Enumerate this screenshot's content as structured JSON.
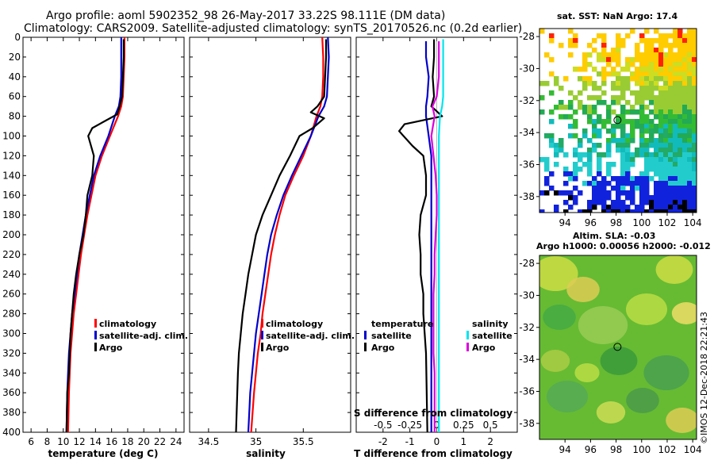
{
  "title": {
    "line1": "Argo profile: aoml 5902352_98 26-May-2017 33.22S 98.111E (DM data)",
    "line2": "Climatology: CARS2009. Satellite-adjusted climatology: synTS_20170526.nc (0.2d earlier)"
  },
  "credit": "©IMOS 12-Dec-2018 22:21:43",
  "colors": {
    "climatology": "#ff0000",
    "satellite": "#0000cc",
    "argo": "#000000",
    "satellite_salinity": "#00e5ee",
    "argo_salinity": "#dd00dd"
  },
  "chart_data": [
    {
      "type": "line",
      "id": "temperature",
      "xlabel": "temperature (deg C)",
      "ylabel": "",
      "xlim": [
        5,
        25
      ],
      "ylim": [
        400,
        0
      ],
      "xticks": [
        "6",
        "8",
        "10",
        "12",
        "14",
        "16",
        "18",
        "20",
        "22",
        "24"
      ],
      "xtick_values": [
        6,
        8,
        10,
        12,
        14,
        16,
        18,
        20,
        22,
        24
      ],
      "yticks": [
        "0",
        "20",
        "40",
        "60",
        "80",
        "100",
        "120",
        "140",
        "160",
        "180",
        "200",
        "220",
        "240",
        "260",
        "280",
        "300",
        "320",
        "340",
        "360",
        "380",
        "400"
      ],
      "ytick_values": [
        0,
        20,
        40,
        60,
        80,
        100,
        120,
        140,
        160,
        180,
        200,
        220,
        240,
        260,
        280,
        300,
        320,
        340,
        360,
        380,
        400
      ],
      "legend": [
        "climatology",
        "satellite-adj. clim.",
        "Argo"
      ],
      "series": [
        {
          "name": "climatology",
          "color": "#ff0000",
          "x": [
            17.6,
            17.6,
            17.5,
            17.4,
            17.2,
            16.8,
            15.8,
            14.8,
            14.0,
            13.5,
            13.0,
            12.6,
            12.2,
            11.9,
            11.6,
            11.3,
            11.1,
            10.9,
            10.8,
            10.7,
            10.6
          ],
          "y": [
            0,
            20,
            40,
            60,
            70,
            80,
            100,
            120,
            140,
            160,
            180,
            200,
            220,
            240,
            260,
            280,
            300,
            320,
            340,
            360,
            400
          ]
        },
        {
          "name": "satellite-adj. clim.",
          "color": "#0000cc",
          "x": [
            17.2,
            17.2,
            17.2,
            17.1,
            16.9,
            16.4,
            15.6,
            14.6,
            13.8,
            13.3,
            12.8,
            12.4,
            12.0,
            11.7,
            11.4,
            11.1,
            10.9,
            10.7,
            10.6,
            10.5,
            10.4
          ],
          "y": [
            0,
            20,
            40,
            60,
            70,
            80,
            100,
            120,
            140,
            160,
            180,
            200,
            220,
            240,
            260,
            280,
            300,
            320,
            340,
            360,
            400
          ]
        },
        {
          "name": "Argo",
          "color": "#000000",
          "x": [
            17.5,
            17.5,
            17.4,
            17.3,
            17.0,
            16.7,
            15.8,
            13.6,
            13.1,
            13.8,
            13.6,
            13.0,
            12.8,
            12.5,
            12.0,
            11.6,
            11.3,
            11.1,
            10.9,
            10.8,
            10.7,
            10.5,
            10.4
          ],
          "y": [
            2,
            20,
            40,
            60,
            70,
            78,
            82,
            92,
            100,
            120,
            140,
            160,
            180,
            200,
            220,
            240,
            260,
            280,
            300,
            320,
            340,
            360,
            400
          ]
        }
      ]
    },
    {
      "type": "line",
      "id": "salinity",
      "xlabel": "salinity",
      "xlim": [
        34.3,
        36.0
      ],
      "ylim": [
        400,
        0
      ],
      "xticks": [
        "34.5",
        "35",
        "35.5"
      ],
      "xtick_values": [
        34.5,
        35.0,
        35.5
      ],
      "legend": [
        "climatology",
        "satellite-adj. clim.",
        "Argo"
      ],
      "series": [
        {
          "name": "climatology",
          "color": "#ff0000",
          "x": [
            35.7,
            35.71,
            35.71,
            35.7,
            35.68,
            35.64,
            35.58,
            35.5,
            35.4,
            35.31,
            35.25,
            35.2,
            35.16,
            35.13,
            35.1,
            35.07,
            35.05,
            35.02,
            35.0,
            34.98,
            34.95
          ],
          "y": [
            0,
            20,
            40,
            60,
            70,
            80,
            100,
            120,
            140,
            160,
            180,
            200,
            220,
            240,
            260,
            280,
            300,
            320,
            340,
            360,
            400
          ]
        },
        {
          "name": "satellite-adj. clim.",
          "color": "#0000cc",
          "x": [
            35.76,
            35.77,
            35.76,
            35.75,
            35.72,
            35.66,
            35.58,
            35.48,
            35.38,
            35.29,
            35.22,
            35.16,
            35.12,
            35.09,
            35.06,
            35.03,
            35.0,
            34.98,
            34.96,
            34.94,
            34.92
          ],
          "y": [
            0,
            20,
            40,
            60,
            70,
            80,
            100,
            120,
            140,
            160,
            180,
            200,
            220,
            240,
            260,
            280,
            300,
            320,
            340,
            360,
            400
          ]
        },
        {
          "name": "Argo",
          "color": "#000000",
          "x": [
            35.74,
            35.74,
            35.73,
            35.72,
            35.65,
            35.58,
            35.72,
            35.6,
            35.46,
            35.36,
            35.25,
            35.16,
            35.07,
            35.0,
            34.96,
            34.92,
            34.89,
            34.86,
            34.84,
            34.82,
            34.81,
            34.79
          ],
          "y": [
            2,
            20,
            40,
            60,
            70,
            76,
            82,
            92,
            100,
            120,
            140,
            160,
            180,
            200,
            220,
            240,
            260,
            280,
            300,
            320,
            340,
            400
          ]
        }
      ]
    },
    {
      "type": "line",
      "id": "difference",
      "xlabel": "T difference from climatology",
      "x2label": "S difference from climatology",
      "xlim": [
        -3,
        3
      ],
      "x2lim": [
        -0.75,
        0.75
      ],
      "ylim": [
        400,
        0
      ],
      "xticks": [
        "-2",
        "-1",
        "0",
        "1",
        "2"
      ],
      "xtick_values": [
        -2,
        -1,
        0,
        1,
        2
      ],
      "x2ticks": [
        "-0.5",
        "-0.25",
        "0",
        "0.25",
        "0.5"
      ],
      "x2tick_values": [
        -0.5,
        -0.25,
        0,
        0.25,
        0.5
      ],
      "legend_temperature": {
        "header": "temperature",
        "items": [
          "satellite",
          "Argo"
        ]
      },
      "legend_salinity": {
        "header": "salinity",
        "items": [
          "satellite",
          "Argo"
        ]
      },
      "series": [
        {
          "name": "T satellite",
          "axis": "T",
          "color": "#0000cc",
          "x": [
            -0.4,
            -0.4,
            -0.3,
            -0.35,
            -0.4,
            -0.4,
            -0.3,
            -0.2,
            -0.2,
            -0.2,
            -0.2,
            -0.2,
            -0.2,
            -0.2,
            -0.2,
            -0.2,
            -0.2,
            -0.2,
            -0.2,
            -0.2,
            -0.2
          ],
          "y": [
            4,
            20,
            40,
            60,
            70,
            80,
            100,
            120,
            140,
            160,
            180,
            200,
            220,
            240,
            260,
            280,
            300,
            320,
            340,
            360,
            400
          ]
        },
        {
          "name": "T Argo",
          "axis": "T",
          "color": "#000000",
          "x": [
            -0.1,
            -0.1,
            -0.15,
            -0.1,
            -0.2,
            0.2,
            -1.2,
            -1.4,
            -0.9,
            -0.5,
            -0.4,
            -0.4,
            -0.6,
            -0.65,
            -0.6,
            -0.6,
            -0.5,
            -0.5,
            -0.45,
            -0.4,
            -0.35
          ],
          "y": [
            2,
            20,
            40,
            60,
            70,
            80,
            88,
            95,
            110,
            120,
            140,
            160,
            180,
            200,
            220,
            240,
            260,
            280,
            300,
            320,
            400
          ]
        },
        {
          "name": "S satellite",
          "axis": "S",
          "color": "#00e5ee",
          "x": [
            0.06,
            0.06,
            0.06,
            0.06,
            0.05,
            0.03,
            0.02,
            0.02,
            0.02,
            0.02,
            0.02,
            0.02,
            0.02,
            0.02,
            0.02,
            0.02,
            0.02,
            0.02,
            0.02,
            0.02,
            0.02
          ],
          "y": [
            2,
            20,
            40,
            60,
            70,
            80,
            100,
            120,
            140,
            160,
            180,
            200,
            220,
            240,
            260,
            280,
            300,
            320,
            340,
            360,
            400
          ]
        },
        {
          "name": "S Argo",
          "axis": "S",
          "color": "#dd00dd",
          "x": [
            0.02,
            0.02,
            0.02,
            0.0,
            -0.04,
            -0.02,
            -0.05,
            -0.03,
            -0.01,
            0.0,
            0.0,
            -0.01,
            -0.02,
            -0.02,
            -0.03,
            -0.03,
            -0.03,
            -0.03,
            -0.02,
            -0.02,
            -0.02
          ],
          "y": [
            4,
            20,
            40,
            60,
            70,
            80,
            100,
            120,
            140,
            160,
            180,
            200,
            220,
            240,
            260,
            280,
            300,
            320,
            340,
            360,
            400
          ]
        }
      ]
    },
    {
      "type": "heatmap",
      "id": "sst_map",
      "title": "sat. SST: NaN Argo: 17.4",
      "xlim": [
        92,
        104.3
      ],
      "ylim": [
        -39,
        -27.5
      ],
      "xticks": [
        "94",
        "96",
        "98",
        "100",
        "102",
        "104"
      ],
      "xtick_values": [
        94,
        96,
        98,
        100,
        102,
        104
      ],
      "yticks": [
        "-28",
        "-30",
        "-32",
        "-34",
        "-36",
        "-38"
      ],
      "ytick_values": [
        -28,
        -30,
        -32,
        -34,
        -36,
        -38
      ],
      "marker": {
        "lon": 98.111,
        "lat": -33.22
      }
    },
    {
      "type": "heatmap",
      "id": "sla_map",
      "title": "Altim. SLA: -0.03",
      "subtitle": "Argo h1000: 0.00056 h2000: -0.012",
      "xlim": [
        92,
        104.3
      ],
      "ylim": [
        -39,
        -27.5
      ],
      "xticks": [
        "94",
        "96",
        "98",
        "100",
        "102",
        "104"
      ],
      "xtick_values": [
        94,
        96,
        98,
        100,
        102,
        104
      ],
      "yticks": [
        "-28",
        "-30",
        "-32",
        "-34",
        "-36",
        "-38"
      ],
      "ytick_values": [
        -28,
        -30,
        -32,
        -34,
        -36,
        -38
      ],
      "marker": {
        "lon": 98.111,
        "lat": -33.22
      }
    }
  ]
}
